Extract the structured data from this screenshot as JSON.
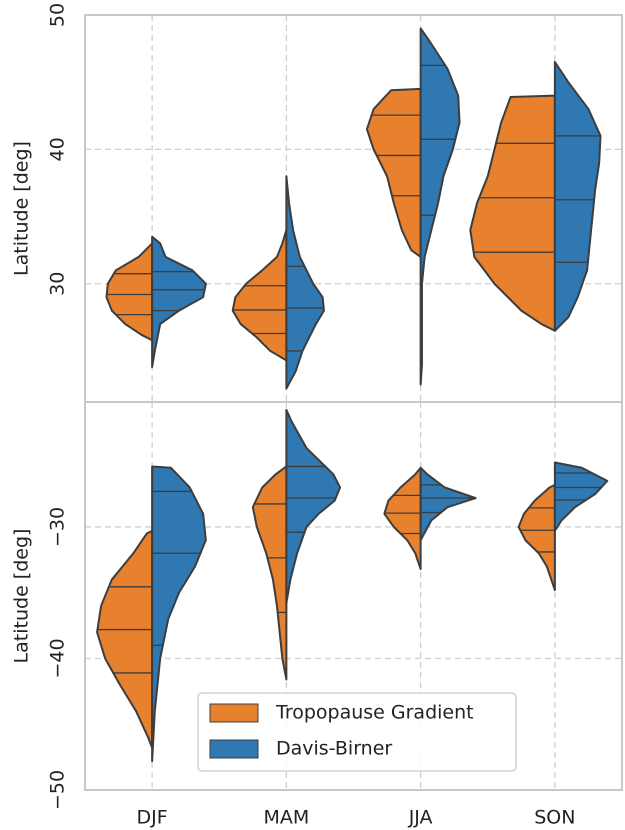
{
  "chart_data": [
    {
      "type": "violin",
      "ylabel": "Latitude [deg]",
      "ylim": [
        21.2,
        50
      ],
      "yticks": [
        30,
        40,
        50
      ],
      "grid": true,
      "series": [
        {
          "color": "#e8812e",
          "side": "left",
          "values": [
            {
              "quartiles": [
                27.7,
                29.2,
                30.75
              ],
              "profile": {
                "lat": [
                  33,
                  32,
                  31,
                  30,
                  29,
                  28,
                  27,
                  26.2,
                  25.8
                ],
                "width": [
                  0,
                  0.1,
                  0.27,
                  0.33,
                  0.34,
                  0.3,
                  0.2,
                  0.08,
                  0
                ]
              }
            },
            {
              "quartiles": [
                26.3,
                28.05,
                29.85
              ],
              "profile": {
                "lat": [
                  34,
                  33,
                  32,
                  31,
                  30,
                  29,
                  28,
                  27,
                  26,
                  25,
                  24.3
                ],
                "width": [
                  0,
                  0.03,
                  0.07,
                  0.18,
                  0.3,
                  0.38,
                  0.4,
                  0.34,
                  0.22,
                  0.12,
                  0
                ]
              }
            },
            {
              "quartiles": [
                36.55,
                39.55,
                42.55
              ],
              "profile": {
                "lat": [
                  44.5,
                  44.4,
                  43,
                  41.5,
                  40,
                  38,
                  36,
                  34,
                  32.5,
                  32
                ],
                "width": [
                  0,
                  0.22,
                  0.35,
                  0.4,
                  0.35,
                  0.25,
                  0.2,
                  0.14,
                  0.07,
                  0
                ]
              }
            },
            {
              "quartiles": [
                32.35,
                36.4,
                40.45
              ],
              "profile": {
                "lat": [
                  44,
                  43.9,
                  42,
                  40,
                  38,
                  36,
                  34,
                  32,
                  30,
                  28,
                  27,
                  26.5
                ],
                "width": [
                  0,
                  0.33,
                  0.4,
                  0.45,
                  0.5,
                  0.58,
                  0.63,
                  0.6,
                  0.45,
                  0.25,
                  0.1,
                  0
                ]
              }
            }
          ]
        },
        {
          "color": "#2f78b2",
          "side": "right",
          "values": [
            {
              "quartiles": [
                28,
                29.55,
                30.9
              ],
              "profile": {
                "lat": [
                  33.5,
                  33,
                  32,
                  31,
                  30,
                  29,
                  28,
                  27,
                  25,
                  23.8
                ],
                "width": [
                  0,
                  0.06,
                  0.1,
                  0.3,
                  0.4,
                  0.38,
                  0.2,
                  0.06,
                  0.02,
                  0
                ]
              }
            },
            {
              "quartiles": [
                25,
                28.2,
                31.3
              ],
              "profile": {
                "lat": [
                  38,
                  36,
                  34,
                  32,
                  30,
                  29,
                  28,
                  27,
                  25,
                  23.5,
                  22.2
                ],
                "width": [
                  0,
                  0.02,
                  0.05,
                  0.1,
                  0.2,
                  0.27,
                  0.28,
                  0.22,
                  0.12,
                  0.07,
                  0
                ]
              }
            },
            {
              "quartiles": [
                35.1,
                40.75,
                46.25
              ],
              "profile": {
                "lat": [
                  49,
                  48,
                  46,
                  44,
                  42,
                  40,
                  38,
                  36,
                  34,
                  32,
                  30,
                  24,
                  22.5
                ],
                "width": [
                  0,
                  0.07,
                  0.2,
                  0.28,
                  0.29,
                  0.24,
                  0.17,
                  0.13,
                  0.08,
                  0.03,
                  0.01,
                  0.01,
                  0
                ]
              }
            },
            {
              "quartiles": [
                31.6,
                36.25,
                41
              ],
              "profile": {
                "lat": [
                  46.5,
                  45,
                  43,
                  41,
                  39,
                  37,
                  35,
                  33,
                  31,
                  29,
                  27.5,
                  26.5
                ],
                "width": [
                  0,
                  0.1,
                  0.25,
                  0.34,
                  0.33,
                  0.3,
                  0.28,
                  0.26,
                  0.24,
                  0.17,
                  0.1,
                  0
                ]
              }
            }
          ]
        }
      ]
    },
    {
      "type": "violin",
      "ylabel": "Latitude [deg]",
      "ylim": [
        -50,
        -20.5
      ],
      "yticks": [
        {
          "value": -50,
          "label": "−50"
        },
        {
          "value": -40,
          "label": "−40"
        },
        {
          "value": -30,
          "label": "−30"
        }
      ],
      "grid": true,
      "categories": [
        "DJF",
        "MAM",
        "JJA",
        "SON"
      ],
      "legend": "lower center",
      "series": [
        {
          "name": "Tropopause Gradient",
          "color": "#e8812e",
          "side": "left",
          "values": [
            {
              "quartiles": [
                -41.1,
                -37.8,
                -34.55
              ],
              "profile": {
                "lat": [
                  -30.3,
                  -30.5,
                  -32,
                  -34,
                  -36,
                  -38,
                  -40,
                  -42,
                  -44,
                  -46,
                  -46.8
                ],
                "width": [
                  0,
                  0.04,
                  0.14,
                  0.3,
                  0.38,
                  0.41,
                  0.35,
                  0.24,
                  0.12,
                  0.03,
                  0
                ]
              }
            },
            {
              "quartiles": [
                -36.5,
                -32.35,
                -28.25
              ],
              "profile": {
                "lat": [
                  -25.4,
                  -26,
                  -27,
                  -28.5,
                  -30,
                  -32,
                  -34,
                  -36,
                  -38,
                  -40,
                  -41.6
                ],
                "width": [
                  0,
                  0.08,
                  0.18,
                  0.25,
                  0.22,
                  0.15,
                  0.1,
                  0.07,
                  0.05,
                  0.03,
                  0
                ]
              }
            },
            {
              "quartiles": [
                -30.5,
                -28.95,
                -27.6
              ],
              "profile": {
                "lat": [
                  -25.5,
                  -26,
                  -27,
                  -28,
                  -29,
                  -30,
                  -31,
                  -32,
                  -33.2
                ],
                "width": [
                  0,
                  0.04,
                  0.15,
                  0.24,
                  0.27,
                  0.2,
                  0.1,
                  0.04,
                  0
                ]
              }
            },
            {
              "quartiles": [
                -31.9,
                -30.25,
                -28.55
              ],
              "profile": {
                "lat": [
                  -26.8,
                  -27,
                  -28,
                  -29,
                  -30,
                  -31,
                  -32,
                  -33,
                  -34.8
                ],
                "width": [
                  0,
                  0.04,
                  0.15,
                  0.23,
                  0.27,
                  0.22,
                  0.12,
                  0.06,
                  0
                ]
              }
            }
          ]
        },
        {
          "name": "Davis-Birner",
          "color": "#2f78b2",
          "side": "right",
          "values": [
            {
              "quartiles": [
                -39,
                -32,
                -27.3
              ],
              "profile": {
                "lat": [
                  -25.4,
                  -25.5,
                  -27,
                  -29,
                  -31,
                  -33,
                  -35,
                  -37,
                  -40,
                  -44,
                  -47.8
                ],
                "width": [
                  0,
                  0.14,
                  0.28,
                  0.38,
                  0.4,
                  0.32,
                  0.2,
                  0.12,
                  0.06,
                  0.02,
                  0
                ]
              }
            },
            {
              "quartiles": [
                -30.4,
                -27.8,
                -25.4
              ],
              "profile": {
                "lat": [
                  -21.1,
                  -22,
                  -24,
                  -26,
                  -27,
                  -28,
                  -29,
                  -30,
                  -32,
                  -34,
                  -35.8
                ],
                "width": [
                  0,
                  0.04,
                  0.15,
                  0.35,
                  0.4,
                  0.36,
                  0.24,
                  0.15,
                  0.08,
                  0.03,
                  0
                ]
              }
            },
            {
              "quartiles": [
                -28.9,
                -27.8,
                -26.8
              ],
              "profile": {
                "lat": [
                  -25.5,
                  -26,
                  -27,
                  -27.8,
                  -28.5,
                  -29.5,
                  -31
                ],
                "width": [
                  0,
                  0.05,
                  0.18,
                  0.41,
                  0.2,
                  0.08,
                  0
                ]
              }
            },
            {
              "quartiles": [
                -27.95,
                -27,
                -25.9
              ],
              "profile": {
                "lat": [
                  -25.1,
                  -25.5,
                  -26.5,
                  -27.5,
                  -28.5,
                  -29.5,
                  -30.3
                ],
                "width": [
                  0,
                  0.2,
                  0.39,
                  0.3,
                  0.15,
                  0.05,
                  0
                ]
              }
            }
          ]
        }
      ]
    }
  ]
}
